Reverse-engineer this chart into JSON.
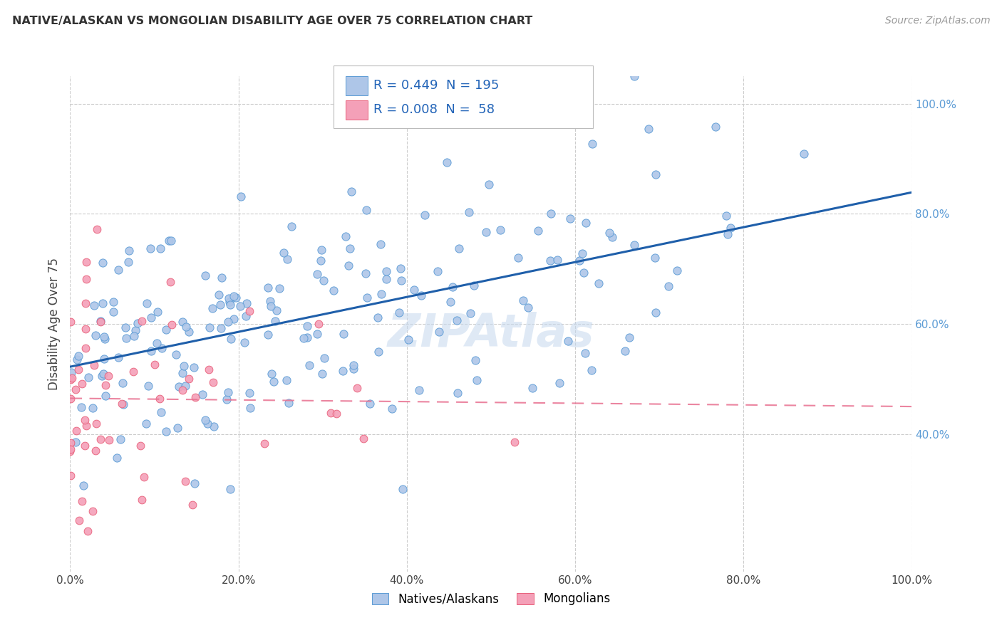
{
  "title": "NATIVE/ALASKAN VS MONGOLIAN DISABILITY AGE OVER 75 CORRELATION CHART",
  "source": "Source: ZipAtlas.com",
  "ylabel": "Disability Age Over 75",
  "legend_label1": "Natives/Alaskans",
  "legend_label2": "Mongolians",
  "R1": "0.449",
  "N1": 195,
  "R2": "0.008",
  "N2": 58,
  "color_blue": "#aec6e8",
  "color_pink": "#f4a0b8",
  "edge_blue": "#5b9bd5",
  "edge_pink": "#e8607a",
  "line_blue": "#1f5faa",
  "line_pink": "#e87090",
  "watermark": "ZIPAtlas",
  "xlim": [
    0,
    100
  ],
  "ylim": [
    15,
    105
  ],
  "x_ticks": [
    0,
    20,
    40,
    60,
    80,
    100
  ],
  "y_ticks_right": [
    40,
    60,
    80,
    100
  ],
  "background": "#ffffff",
  "grid_color": "#cccccc"
}
